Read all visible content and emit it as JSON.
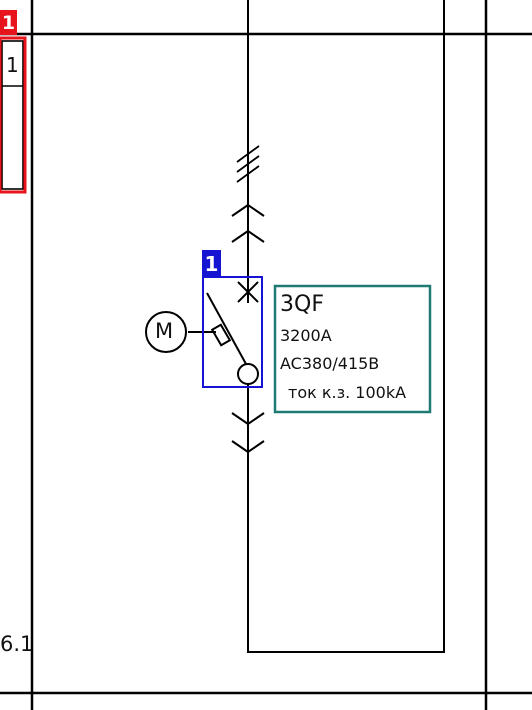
{
  "left_panel": {
    "badge_number": "1",
    "cell_value": "1",
    "sheet_ref": "6.1"
  },
  "breaker": {
    "badge_number": "1",
    "motor_symbol": "M",
    "designation": "3QF",
    "rated_current": "3200A",
    "voltage": "AC380/415B",
    "short_circuit": "ток к.з. 100kA"
  },
  "colors": {
    "left_highlight": "#e8141b",
    "breaker_highlight": "#1414d2",
    "label_box": "#1f7a73",
    "line": "#000000"
  }
}
